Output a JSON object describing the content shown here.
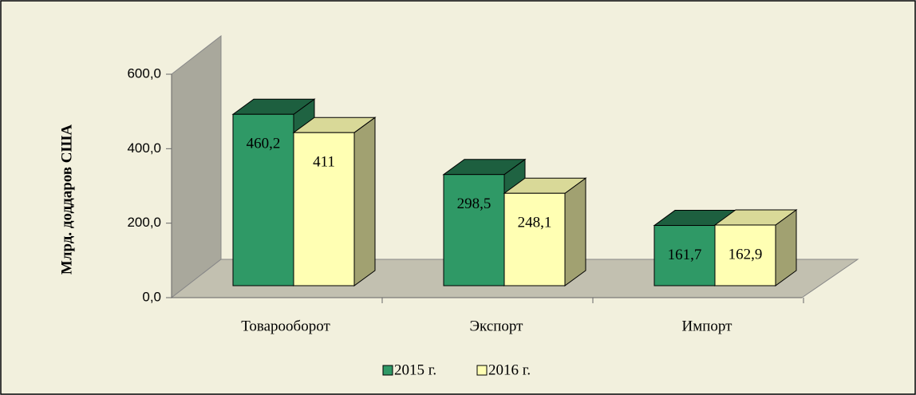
{
  "chart_data": {
    "type": "bar3d",
    "y_label": "Млрд. доддаров США",
    "categories": [
      "Товарооборот",
      "Экспорт",
      "Импорт"
    ],
    "series": [
      {
        "name": "2015 г.",
        "color": "#2f9966",
        "values": [
          460.2,
          298.5,
          161.7
        ],
        "value_labels": [
          "460,2",
          "298,5",
          "161,7"
        ]
      },
      {
        "name": "2016 г.",
        "color": "#ffffb3",
        "values": [
          411,
          248.1,
          162.9
        ],
        "value_labels": [
          "411",
          "248,1",
          "162,9"
        ]
      }
    ],
    "ylim": [
      0,
      600
    ],
    "yticks": [
      {
        "value": 0,
        "label": "0,0"
      },
      {
        "value": 200,
        "label": "200,0"
      },
      {
        "value": 400,
        "label": "400,0"
      },
      {
        "value": 600,
        "label": "600,0"
      }
    ],
    "legend": "bottom"
  }
}
